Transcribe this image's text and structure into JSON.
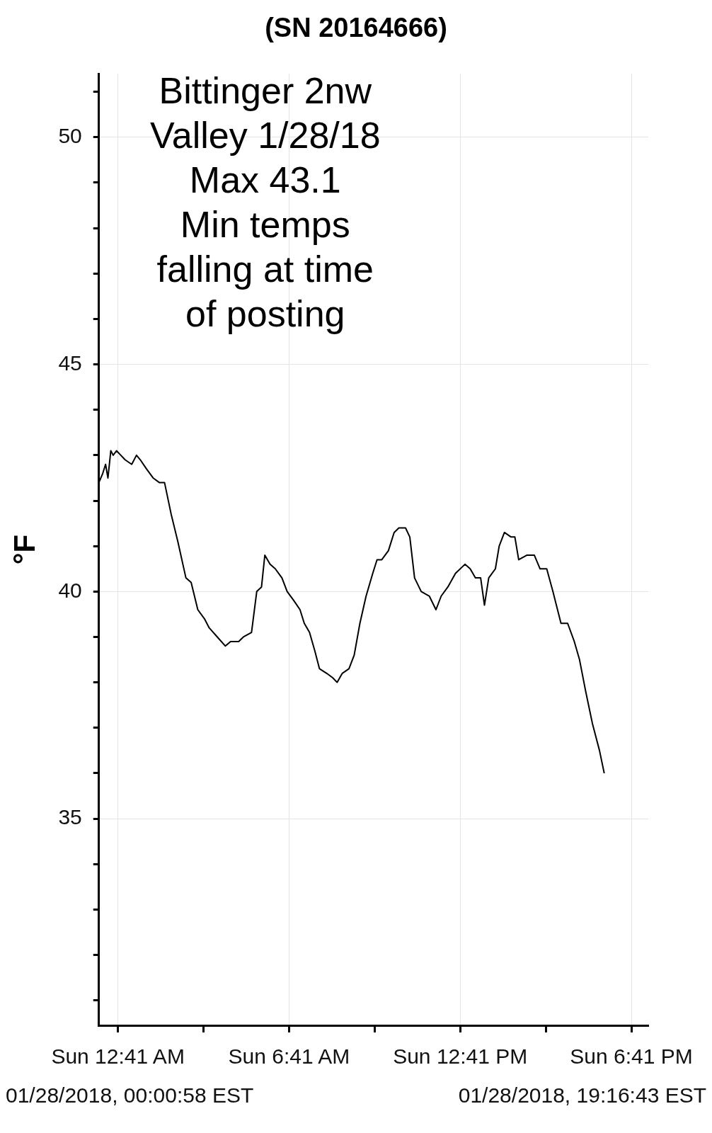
{
  "chart_data": {
    "type": "line",
    "title": "(SN 20164666)",
    "ylabel": "°F",
    "annotations": [
      "Bittinger 2nw\nValley 1/28/18\nMax 43.1\nMin temps\nfalling at time\nof posting",
      "01/28/2018, 00:00:58 EST",
      "01/28/2018, 19:16:43 EST"
    ],
    "xlim": [
      "2018-01-28T00:01",
      "2018-01-28T19:17"
    ],
    "xticks": [
      {
        "value": "2018-01-28T00:41",
        "label": "Sun 12:41 AM"
      },
      {
        "value": "2018-01-28T03:41",
        "label": null
      },
      {
        "value": "2018-01-28T06:41",
        "label": "Sun 6:41 AM"
      },
      {
        "value": "2018-01-28T09:41",
        "label": null
      },
      {
        "value": "2018-01-28T12:41",
        "label": "Sun 12:41 PM"
      },
      {
        "value": "2018-01-28T15:41",
        "label": null
      },
      {
        "value": "2018-01-28T18:41",
        "label": "Sun 6:41 PM"
      }
    ],
    "ylim": [
      30.45,
      51.4
    ],
    "yticks": [
      {
        "value": 31,
        "label": null
      },
      {
        "value": 32,
        "label": null
      },
      {
        "value": 33,
        "label": null
      },
      {
        "value": 34,
        "label": null
      },
      35,
      {
        "value": 36,
        "label": null
      },
      {
        "value": 37,
        "label": null
      },
      {
        "value": 38,
        "label": null
      },
      {
        "value": 39,
        "label": null
      },
      40,
      {
        "value": 41,
        "label": null
      },
      {
        "value": 42,
        "label": null
      },
      {
        "value": 43,
        "label": null
      },
      {
        "value": 44,
        "label": null
      },
      45,
      {
        "value": 46,
        "label": null
      },
      {
        "value": 47,
        "label": null
      },
      {
        "value": 48,
        "label": null
      },
      {
        "value": 49,
        "label": null
      },
      50,
      {
        "value": 51,
        "label": null
      }
    ],
    "grid": true,
    "legend": false,
    "marker": "none",
    "series": [
      {
        "color": "#000000",
        "x": [
          "2018-01-28T00:01",
          "2018-01-28T00:09",
          "2018-01-28T00:15",
          "2018-01-28T00:20",
          "2018-01-28T00:26",
          "2018-01-28T00:31",
          "2018-01-28T00:38",
          "2018-01-28T00:47",
          "2018-01-28T00:56",
          "2018-01-28T01:10",
          "2018-01-28T01:20",
          "2018-01-28T01:28",
          "2018-01-28T01:41",
          "2018-01-28T01:55",
          "2018-01-28T02:08",
          "2018-01-28T02:19",
          "2018-01-28T02:33",
          "2018-01-28T02:47",
          "2018-01-28T03:04",
          "2018-01-28T03:15",
          "2018-01-28T03:29",
          "2018-01-28T03:43",
          "2018-01-28T03:53",
          "2018-01-28T04:10",
          "2018-01-28T04:27",
          "2018-01-28T04:38",
          "2018-01-28T04:55",
          "2018-01-28T05:05",
          "2018-01-28T05:22",
          "2018-01-28T05:33",
          "2018-01-28T05:43",
          "2018-01-28T05:50",
          "2018-01-28T06:01",
          "2018-01-28T06:12",
          "2018-01-28T06:26",
          "2018-01-28T06:37",
          "2018-01-28T06:51",
          "2018-01-28T07:04",
          "2018-01-28T07:13",
          "2018-01-28T07:24",
          "2018-01-28T07:35",
          "2018-01-28T07:45",
          "2018-01-28T08:00",
          "2018-01-28T08:13",
          "2018-01-28T08:22",
          "2018-01-28T08:33",
          "2018-01-28T08:47",
          "2018-01-28T08:58",
          "2018-01-28T09:10",
          "2018-01-28T09:23",
          "2018-01-28T09:37",
          "2018-01-28T09:46",
          "2018-01-28T09:56",
          "2018-01-28T10:10",
          "2018-01-28T10:22",
          "2018-01-28T10:32",
          "2018-01-28T10:46",
          "2018-01-28T10:55",
          "2018-01-28T11:05",
          "2018-01-28T11:19",
          "2018-01-28T11:36",
          "2018-01-28T11:50",
          "2018-01-28T12:01",
          "2018-01-28T12:15",
          "2018-01-28T12:31",
          "2018-01-28T12:51",
          "2018-01-28T13:02",
          "2018-01-28T13:13",
          "2018-01-28T13:24",
          "2018-01-28T13:32",
          "2018-01-28T13:41",
          "2018-01-28T13:55",
          "2018-01-28T14:03",
          "2018-01-28T14:14",
          "2018-01-28T14:28",
          "2018-01-28T14:36",
          "2018-01-28T14:44",
          "2018-01-28T15:01",
          "2018-01-28T15:17",
          "2018-01-28T15:29",
          "2018-01-28T15:43",
          "2018-01-28T15:56",
          "2018-01-28T16:13",
          "2018-01-28T16:27",
          "2018-01-28T16:41",
          "2018-01-28T16:52",
          "2018-01-28T17:05",
          "2018-01-28T17:19",
          "2018-01-28T17:34",
          "2018-01-28T17:44"
        ],
        "values": [
          42.4,
          42.6,
          42.8,
          42.5,
          43.1,
          43.0,
          43.1,
          43.0,
          42.9,
          42.8,
          43.0,
          42.9,
          42.7,
          42.5,
          42.4,
          42.4,
          41.7,
          41.1,
          40.3,
          40.2,
          39.6,
          39.4,
          39.2,
          39.0,
          38.8,
          38.9,
          38.9,
          39.0,
          39.1,
          40.0,
          40.1,
          40.8,
          40.6,
          40.5,
          40.3,
          40.0,
          39.8,
          39.6,
          39.3,
          39.1,
          38.7,
          38.3,
          38.2,
          38.1,
          38.0,
          38.2,
          38.3,
          38.6,
          39.3,
          39.9,
          40.4,
          40.7,
          40.7,
          40.9,
          41.3,
          41.4,
          41.4,
          41.2,
          40.3,
          40.0,
          39.9,
          39.6,
          39.9,
          40.1,
          40.4,
          40.6,
          40.5,
          40.3,
          40.3,
          39.7,
          40.3,
          40.5,
          41.0,
          41.3,
          41.2,
          41.2,
          40.7,
          40.8,
          40.8,
          40.5,
          40.5,
          40.0,
          39.3,
          39.3,
          38.9,
          38.5,
          37.8,
          37.1,
          36.5,
          36.0
        ]
      }
    ]
  }
}
